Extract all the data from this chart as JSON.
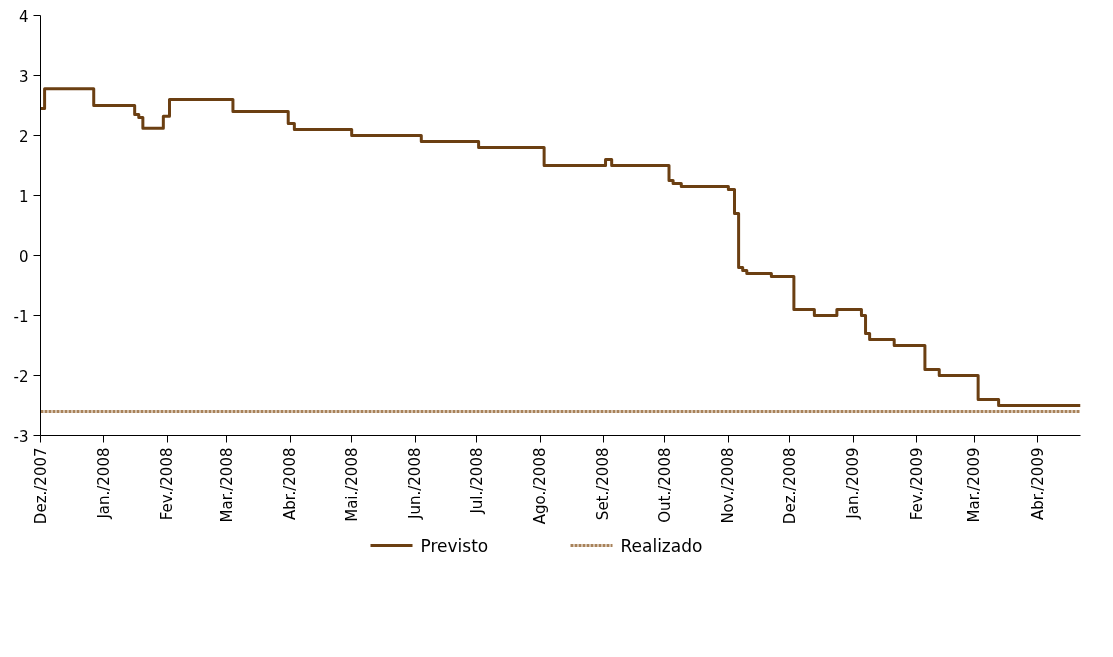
{
  "chart_data": {
    "type": "step",
    "xlim": [
      "2007-12-01",
      "2009-04-22"
    ],
    "ylim": [
      -3,
      4
    ],
    "yticks": [
      -3,
      -2,
      -1,
      0,
      1,
      2,
      3,
      4
    ],
    "xticks": [
      {
        "value": "2007-12-01",
        "label": "Dez./2007"
      },
      {
        "value": "2008-01-01",
        "label": "Jan./2008"
      },
      {
        "value": "2008-02-01",
        "label": "Fev./2008"
      },
      {
        "value": "2008-03-01",
        "label": "Mar./2008"
      },
      {
        "value": "2008-04-01",
        "label": "Abr./2008"
      },
      {
        "value": "2008-05-01",
        "label": "Mai./2008"
      },
      {
        "value": "2008-06-01",
        "label": "Jun./2008"
      },
      {
        "value": "2008-07-01",
        "label": "Jul./2008"
      },
      {
        "value": "2008-08-01",
        "label": "Ago./2008"
      },
      {
        "value": "2008-09-01",
        "label": "Set./2008"
      },
      {
        "value": "2008-10-01",
        "label": "Out./2008"
      },
      {
        "value": "2008-11-01",
        "label": "Nov./2008"
      },
      {
        "value": "2008-12-01",
        "label": "Dez./2008"
      },
      {
        "value": "2009-01-01",
        "label": "Jan./2009"
      },
      {
        "value": "2009-02-01",
        "label": "Fev./2009"
      },
      {
        "value": "2009-03-01",
        "label": "Mar./2009"
      },
      {
        "value": "2009-04-01",
        "label": "Abr./2009"
      }
    ],
    "grid": false,
    "legend": "bottom",
    "series": [
      {
        "name": "Previsto",
        "color": "#6b3f12",
        "line_style": "solid",
        "x": [
          "2007-12-01",
          "2007-12-03",
          "2007-12-27",
          "2008-01-16",
          "2008-01-18",
          "2008-01-20",
          "2008-01-30",
          "2008-02-02",
          "2008-03-04",
          "2008-03-31",
          "2008-04-03",
          "2008-05-01",
          "2008-06-04",
          "2008-07-02",
          "2008-08-03",
          "2008-09-02",
          "2008-09-05",
          "2008-10-03",
          "2008-10-05",
          "2008-10-09",
          "2008-11-01",
          "2008-11-04",
          "2008-11-06",
          "2008-11-08",
          "2008-11-10",
          "2008-11-22",
          "2008-12-03",
          "2008-12-13",
          "2008-12-24",
          "2009-01-05",
          "2009-01-07",
          "2009-01-09",
          "2009-01-21",
          "2009-02-05",
          "2009-02-12",
          "2009-03-03",
          "2009-03-13",
          "2009-04-22"
        ],
        "values": [
          2.45,
          2.78,
          2.5,
          2.35,
          2.3,
          2.12,
          2.32,
          2.6,
          2.4,
          2.2,
          2.1,
          2.0,
          1.9,
          1.8,
          1.5,
          1.6,
          1.5,
          1.25,
          1.2,
          1.15,
          1.1,
          0.7,
          -0.2,
          -0.25,
          -0.3,
          -0.35,
          -0.9,
          -1.0,
          -0.9,
          -1.0,
          -1.3,
          -1.4,
          -1.5,
          -1.9,
          -2.0,
          -2.4,
          -2.5,
          -2.5
        ]
      },
      {
        "name": "Realizado",
        "color": "#a8825a",
        "line_style": "dashed",
        "x": [
          "2007-12-01",
          "2009-04-22"
        ],
        "values": [
          -2.6,
          -2.6
        ]
      }
    ]
  }
}
